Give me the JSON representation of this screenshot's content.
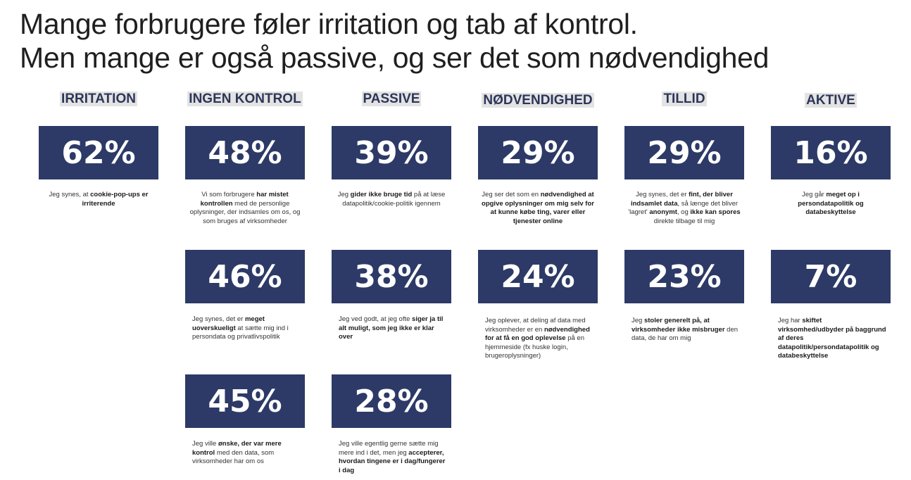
{
  "title": {
    "line1": "Mange forbrugere føler irritation og tab af kontrol.",
    "line2": "Men mange er også passive, og ser det som nødvendighed"
  },
  "columns": [
    {
      "heading": "IRRITATION",
      "stats": [
        {
          "value": "62%",
          "text": [
            [
              "Jeg synes, at ",
              false
            ],
            [
              "cookie-pop-ups er irriterende",
              true
            ]
          ]
        }
      ]
    },
    {
      "heading": "INGEN KONTROL",
      "stats": [
        {
          "value": "48%",
          "text": [
            [
              "Vi som forbrugere ",
              false
            ],
            [
              "har mistet kontrollen",
              true
            ],
            [
              " med de personlige oplysninger, der indsamles om os, og som bruges af virksomheder",
              false
            ]
          ]
        },
        {
          "value": "46%",
          "text": [
            [
              "Jeg synes, det er ",
              false
            ],
            [
              "meget uoverskueligt",
              true
            ],
            [
              " at sætte mig ind i persondata og privatlivspolitik",
              false
            ]
          ]
        },
        {
          "value": "45%",
          "text": [
            [
              "Jeg ville ",
              false
            ],
            [
              "ønske, der var mere kontrol",
              true
            ],
            [
              " med den data, som virksomheder har om os",
              false
            ]
          ]
        }
      ]
    },
    {
      "heading": "PASSIVE",
      "stats": [
        {
          "value": "39%",
          "text": [
            [
              "Jeg ",
              false
            ],
            [
              "gider ikke bruge tid",
              true
            ],
            [
              " på at læse datapolitik/cookie-politik igennem",
              false
            ]
          ]
        },
        {
          "value": "38%",
          "text": [
            [
              "Jeg ved godt, at jeg ofte ",
              false
            ],
            [
              "siger ja til alt muligt, som jeg ikke er klar over",
              true
            ]
          ]
        },
        {
          "value": "28%",
          "text": [
            [
              "Jeg ville egentlig gerne sætte mig mere ind i det, men jeg ",
              false
            ],
            [
              "accepterer, hvordan tingene er i dag/fungerer i dag",
              true
            ]
          ]
        }
      ]
    },
    {
      "heading": "NØDVENDIGHED",
      "stats": [
        {
          "value": "29%",
          "text": [
            [
              "Jeg ser det som en ",
              false
            ],
            [
              "nødvendighed at opgive oplysninger om mig selv for at kunne købe ting, varer eller tjenester online",
              true
            ]
          ]
        },
        {
          "value": "24%",
          "text": [
            [
              "Jeg oplever, at deling af data med virksomheder er en ",
              false
            ],
            [
              "nødvendighed for at få en god oplevelse",
              true
            ],
            [
              " på en hjemmeside (fx huske login, brugeroplysninger)",
              false
            ]
          ]
        }
      ]
    },
    {
      "heading": "TILLID",
      "stats": [
        {
          "value": "29%",
          "text": [
            [
              "Jeg synes, det er ",
              false
            ],
            [
              "fint, der bliver indsamlet data",
              true
            ],
            [
              ", så længe det bliver 'lagret' ",
              false
            ],
            [
              "anonymt",
              true
            ],
            [
              ", og ",
              false
            ],
            [
              "ikke kan spores",
              true
            ],
            [
              " direkte tilbage til mig",
              false
            ]
          ]
        },
        {
          "value": "23%",
          "text": [
            [
              "Jeg ",
              false
            ],
            [
              "stoler generelt på, at virksomheder ikke misbruger",
              true
            ],
            [
              " den data, de har om mig",
              false
            ]
          ]
        }
      ]
    },
    {
      "heading": "AKTIVE",
      "stats": [
        {
          "value": "16%",
          "text": [
            [
              "Jeg går ",
              false
            ],
            [
              "meget op i persondatapolitik og databeskyttelse",
              true
            ]
          ]
        },
        {
          "value": "7%",
          "text": [
            [
              "Jeg har ",
              false
            ],
            [
              "skiftet virksomhed/udbyder på baggrund af deres datapolitik/persondatapolitik og databeskyttelse",
              true
            ]
          ]
        }
      ]
    }
  ]
}
